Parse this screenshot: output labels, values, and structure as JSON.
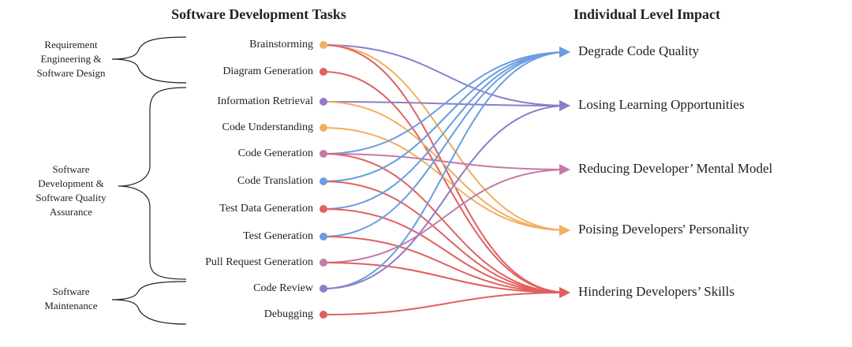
{
  "header": {
    "left": "Software Development Tasks",
    "right": "Individual Level Impact"
  },
  "tasks": [
    "Brainstorming",
    "Diagram Generation",
    "Information Retrieval",
    "Code Understanding",
    "Code Generation",
    "Code Translation",
    "Test Data Generation",
    "Test Generation",
    "Pull Request Generation",
    "Code Review",
    "Debugging"
  ],
  "impacts": [
    "Degrade Code Quality",
    "Losing Learning Opportunities",
    "Reducing Developer’ Mental Model",
    "Poising Developers' Personality",
    "Hindering Developers’ Skills"
  ],
  "groups": [
    {
      "lines": [
        "Requirement",
        "Engineering &",
        "Software Design"
      ]
    },
    {
      "lines": [
        "Software",
        "Development  &",
        "Software Quality",
        "Assurance"
      ]
    },
    {
      "lines": [
        "Software",
        "Maintenance"
      ]
    }
  ]
}
